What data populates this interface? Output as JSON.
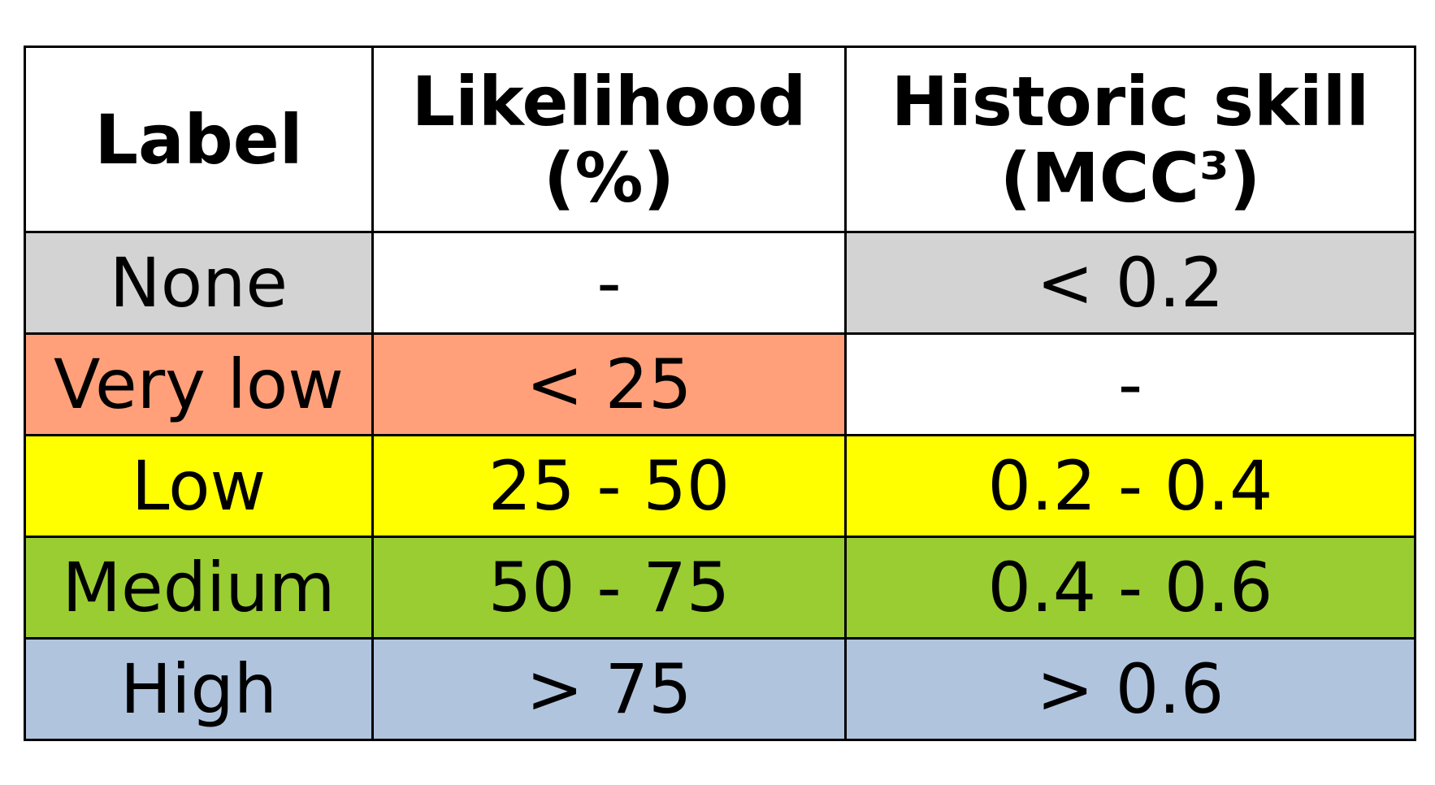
{
  "table": {
    "headers": {
      "label": "Label",
      "likelihood_line1": "Likelihood",
      "likelihood_line2": "(%)",
      "skill_line1": "Historic skill",
      "skill_line2": "(MCC³)"
    },
    "rows": [
      {
        "label": "None",
        "likelihood": "-",
        "skill": "< 0.2",
        "colors": {
          "label": "#d3d3d3",
          "likelihood": "#ffffff",
          "skill": "#d3d3d3"
        }
      },
      {
        "label": "Very low",
        "likelihood": "< 25",
        "skill": "-",
        "colors": {
          "label": "#ffa07a",
          "likelihood": "#ffa07a",
          "skill": "#ffffff"
        }
      },
      {
        "label": "Low",
        "likelihood": "25 - 50",
        "skill": "0.2 - 0.4",
        "colors": {
          "label": "#ffff00",
          "likelihood": "#ffff00",
          "skill": "#ffff00"
        }
      },
      {
        "label": "Medium",
        "likelihood": "50 - 75",
        "skill": "0.4 - 0.6",
        "colors": {
          "label": "#9acd32",
          "likelihood": "#9acd32",
          "skill": "#9acd32"
        }
      },
      {
        "label": "High",
        "likelihood": "> 75",
        "skill": "> 0.6",
        "colors": {
          "label": "#b0c4de",
          "likelihood": "#b0c4de",
          "skill": "#b0c4de"
        }
      }
    ]
  }
}
